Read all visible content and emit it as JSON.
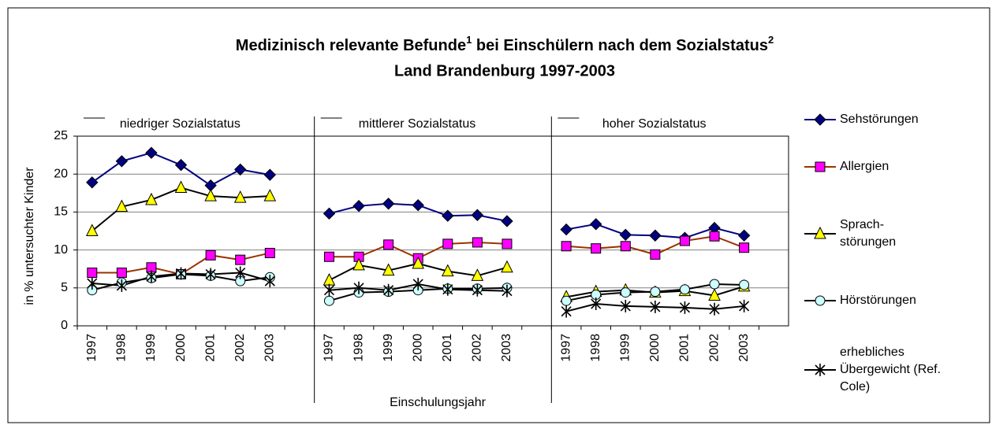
{
  "chart_data": {
    "type": "line",
    "title": [
      "Medizinisch relevante Befunde",
      "1",
      " bei Einschülern nach dem Sozialstatus",
      "2"
    ],
    "subtitle": "Land Brandenburg 1997-2003",
    "x_label": "Einschulungsjahr",
    "y_label": "in % untersuchter Kinder",
    "groups": [
      "niedriger Sozialstatus",
      "mittlerer Sozialstatus",
      "hoher  Sozialstatus"
    ],
    "categories": [
      "1997",
      "1998",
      "1999",
      "2000",
      "2001",
      "2002",
      "2003",
      null,
      "1997",
      "1998",
      "1999",
      "2000",
      "2001",
      "2002",
      "2003",
      null,
      "1997",
      "1998",
      "1999",
      "2000",
      "2001",
      "2002",
      "2003",
      null
    ],
    "ylim": [
      0,
      25
    ],
    "yticks": [
      0,
      5,
      10,
      15,
      20,
      25
    ],
    "grid": true,
    "series": [
      {
        "name": "Sehstörungen",
        "color": "#000080",
        "marker": "diamond",
        "marker_color": "#000080",
        "values": [
          18.9,
          21.7,
          22.8,
          21.2,
          18.5,
          20.6,
          19.9,
          null,
          14.8,
          15.8,
          16.1,
          15.9,
          14.5,
          14.6,
          13.8,
          null,
          12.7,
          13.4,
          12.0,
          11.9,
          11.6,
          12.9,
          11.9,
          null
        ]
      },
      {
        "name": "Allergien",
        "color": "#993300",
        "marker": "square",
        "marker_color": "#ff00ff",
        "values": [
          7.0,
          7.0,
          7.7,
          6.8,
          9.3,
          8.7,
          9.6,
          null,
          9.1,
          9.1,
          10.7,
          8.9,
          10.8,
          11.0,
          10.8,
          null,
          10.5,
          10.2,
          10.5,
          9.4,
          11.2,
          11.8,
          10.3,
          null
        ]
      },
      {
        "name": "Sprach-\nstörungen",
        "color": "#000000",
        "marker": "triangle",
        "marker_color": "#ffff00",
        "values": [
          12.5,
          15.7,
          16.6,
          18.2,
          17.1,
          16.9,
          17.1,
          null,
          6.0,
          8.0,
          7.3,
          8.2,
          7.2,
          6.6,
          7.7,
          null,
          3.8,
          4.5,
          4.7,
          4.4,
          4.6,
          4.0,
          5.2,
          null
        ]
      },
      {
        "name": "Hörstörungen",
        "color": "#000000",
        "marker": "circle",
        "marker_color": "#ccffff",
        "values": [
          4.7,
          5.7,
          6.3,
          6.8,
          6.6,
          5.9,
          6.4,
          null,
          3.3,
          4.4,
          4.5,
          4.7,
          4.9,
          4.9,
          5.0,
          null,
          3.3,
          4.1,
          4.4,
          4.5,
          4.8,
          5.5,
          5.4,
          null
        ]
      },
      {
        "name": "erhebliches\nÜbergewicht (Ref.\nCole)",
        "color": "#000000",
        "marker": "asterisk",
        "marker_color": "#000000",
        "values": [
          5.6,
          5.3,
          6.5,
          6.9,
          6.8,
          7.0,
          5.9,
          null,
          4.7,
          5.0,
          4.7,
          5.5,
          4.8,
          4.7,
          4.6,
          null,
          1.9,
          2.9,
          2.6,
          2.5,
          2.4,
          2.2,
          2.6,
          null
        ]
      }
    ]
  }
}
